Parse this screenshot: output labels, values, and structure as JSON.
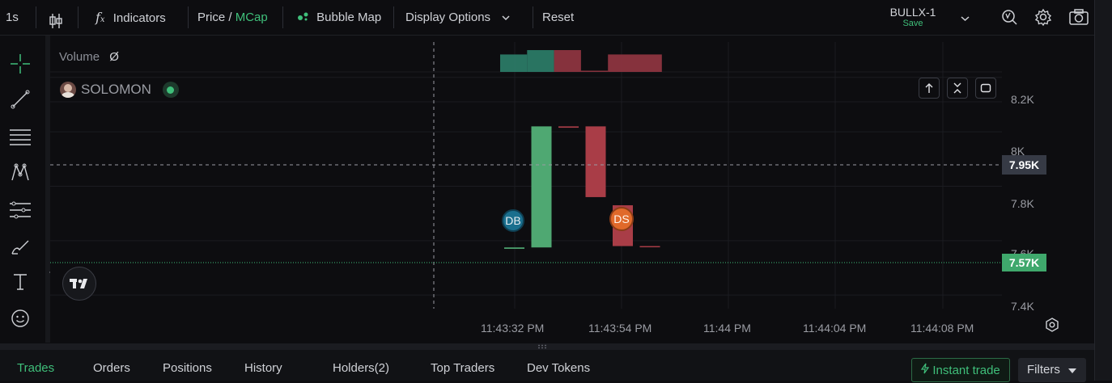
{
  "toolbar": {
    "interval": "1s",
    "indicators": "Indicators",
    "price_label": "Price",
    "slash": "/",
    "mcap_label": "MCap",
    "bubble_map": "Bubble Map",
    "display_options": "Display Options",
    "reset": "Reset",
    "layout_name": "BULLX-1",
    "save": "Save"
  },
  "legend": {
    "volume_label": "Volume",
    "volume_value": "Ø",
    "token_name": "SOLOMON"
  },
  "markers": {
    "db": "DB",
    "ds": "DS"
  },
  "colors": {
    "up": "#4fa872",
    "down": "#a93d47",
    "accent": "#3fbf7a",
    "db_marker": "#1a6f8e",
    "ds_marker": "#e0692a"
  },
  "price_axis": {
    "ticks": [
      "8.2K",
      "8K",
      "7.8K",
      "7.6K",
      "7.4K"
    ],
    "crosshair_label": "7.95K",
    "last_price_label": "7.57K"
  },
  "time_axis": {
    "ticks": [
      "11:43:32 PM",
      "11:43:54 PM",
      "11:44 PM",
      "11:44:04 PM",
      "11:44:08 PM"
    ]
  },
  "chart_data": {
    "type": "candlestick",
    "y_unit": "MCap",
    "ylim": [
      7350,
      8330
    ],
    "candles": [
      {
        "open": 7570,
        "close": 7575,
        "high": 7575,
        "low": 7570
      },
      {
        "open": 7575,
        "close": 8020,
        "high": 8020,
        "low": 7575
      },
      {
        "open": 8020,
        "close": 8015,
        "high": 8020,
        "low": 8015
      },
      {
        "open": 8020,
        "close": 7760,
        "high": 8020,
        "low": 7760
      },
      {
        "open": 7730,
        "close": 7580,
        "high": 7730,
        "low": 7580
      },
      {
        "open": 7580,
        "close": 7578,
        "high": 7580,
        "low": 7578
      }
    ],
    "volumes_relative": [
      0.8,
      1.0,
      1.0,
      0.05,
      0.8,
      0.8
    ]
  },
  "tabs": {
    "items": [
      "Trades",
      "Orders",
      "Positions",
      "History",
      "Holders(2)",
      "Top Traders",
      "Dev Tokens"
    ],
    "instant_trade": "Instant trade",
    "filters": "Filters"
  }
}
